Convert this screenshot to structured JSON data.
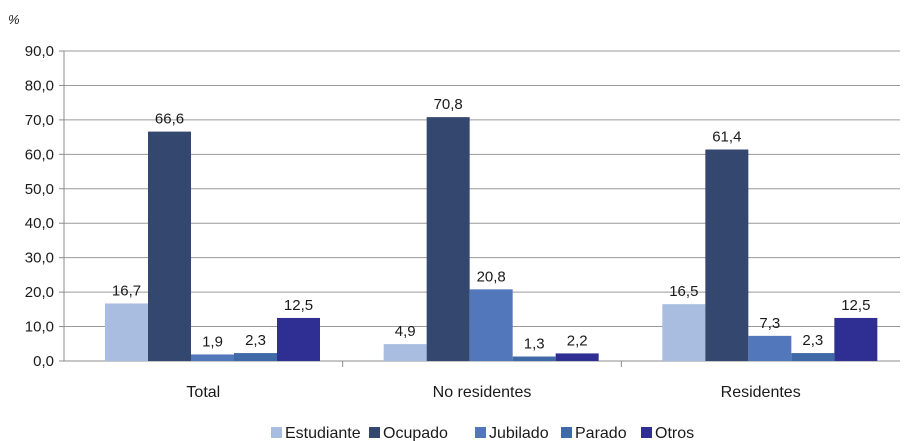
{
  "chart_data": {
    "type": "bar",
    "unit_label": "%",
    "categories": [
      "Total",
      "No residentes",
      "Residentes"
    ],
    "series": [
      {
        "name": "Estudiante",
        "values": [
          16.7,
          4.9,
          16.5
        ],
        "labels": [
          "16,7",
          "4,9",
          "16,5"
        ],
        "color": "#a9bde0"
      },
      {
        "name": "Ocupado",
        "values": [
          66.6,
          70.8,
          61.4
        ],
        "labels": [
          "66,6",
          "70,8",
          "61,4"
        ],
        "color": "#34476f"
      },
      {
        "name": "Jubilado",
        "values": [
          1.9,
          20.8,
          7.3
        ],
        "labels": [
          "1,9",
          "20,8",
          "7,3"
        ],
        "color": "#5277bb"
      },
      {
        "name": "Parado",
        "values": [
          2.3,
          1.3,
          2.3
        ],
        "labels": [
          "2,3",
          "1,3",
          "2,3"
        ],
        "color": "#4069a8"
      },
      {
        "name": "Otros",
        "values": [
          12.5,
          2.2,
          12.5
        ],
        "labels": [
          "12,5",
          "2,2",
          "12,5"
        ],
        "color": "#2f2f93"
      }
    ],
    "yticks": [
      "0,0",
      "10,0",
      "20,0",
      "30,0",
      "40,0",
      "50,0",
      "60,0",
      "70,0",
      "80,0",
      "90,0"
    ],
    "ylim": [
      0,
      90
    ],
    "grid": true,
    "legend_position": "bottom"
  }
}
